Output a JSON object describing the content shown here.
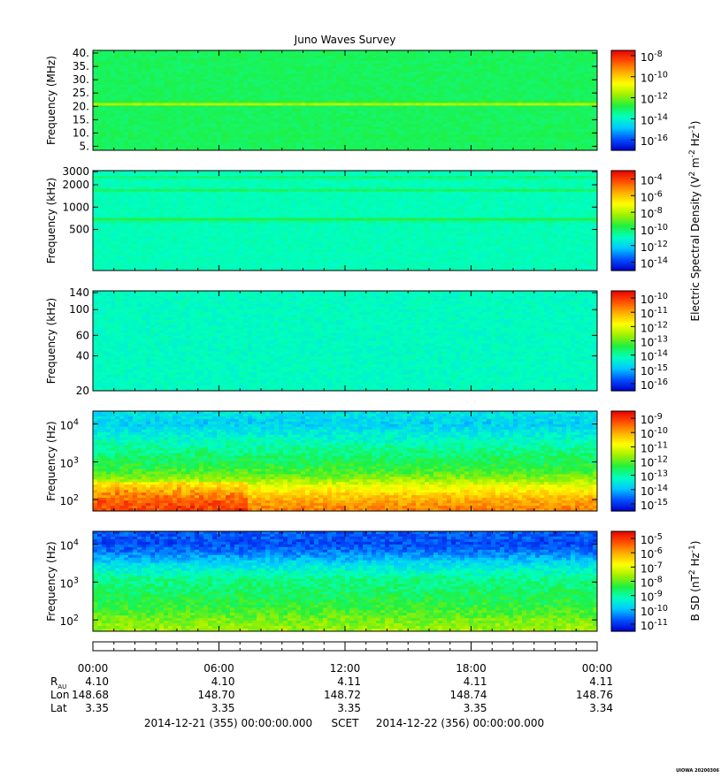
{
  "title": "Juno Waves Survey",
  "colors": {
    "colormap": [
      "#0000c8",
      "#0050ff",
      "#00c8ff",
      "#00ffc0",
      "#20f040",
      "#a0f000",
      "#ffff00",
      "#ffb000",
      "#ff5000",
      "#e80000"
    ]
  },
  "panels": [
    {
      "ylabel": "Frequency (MHz)",
      "yticks": [
        "5.",
        "10.",
        "15.",
        "20.",
        "25.",
        "30.",
        "35.",
        "40."
      ],
      "ytick_values": [
        5,
        10,
        15,
        20,
        25,
        30,
        35,
        40
      ],
      "yrange": [
        3.5,
        41
      ],
      "yscale": "linear",
      "colorbar_labels": [
        "10-16",
        "10-14",
        "10-12",
        "10-10",
        "10-8"
      ],
      "colorbar_ticks": [
        {
          "b": "10",
          "e": "-16"
        },
        {
          "b": "10",
          "e": "-14"
        },
        {
          "b": "10",
          "e": "-12"
        },
        {
          "b": "10",
          "e": "-10"
        },
        {
          "b": "10",
          "e": "-8"
        }
      ],
      "colorbar_range": [
        -17,
        -7.5
      ],
      "base_level": 0.42,
      "noise": 0.02,
      "bands": [
        {
          "value": 21.0,
          "width": 0.9,
          "level": 0.62
        },
        {
          "value": 8.5,
          "width": 0.6,
          "level": 0.46
        }
      ]
    },
    {
      "ylabel": "Frequency (kHz)",
      "yticks": [
        "500",
        "1000",
        "2000",
        "3000"
      ],
      "ytick_values": [
        500,
        1000,
        2000,
        3000
      ],
      "yrange": [
        140,
        3100
      ],
      "yscale": "log",
      "colorbar_labels": [
        "10-14",
        "10-12",
        "10-10",
        "10-8",
        "10-6",
        "10-4"
      ],
      "colorbar_ticks": [
        {
          "b": "10",
          "e": "-14"
        },
        {
          "b": "10",
          "e": "-12"
        },
        {
          "b": "10",
          "e": "-10"
        },
        {
          "b": "10",
          "e": "-8"
        },
        {
          "b": "10",
          "e": "-6"
        },
        {
          "b": "10",
          "e": "-4"
        }
      ],
      "colorbar_range": [
        -15,
        -3
      ],
      "base_level": 0.34,
      "noise": 0.02,
      "bands": [
        {
          "value": 680,
          "width": 60,
          "level": 0.45
        },
        {
          "value": 1700,
          "width": 150,
          "level": 0.42
        },
        {
          "value": 2500,
          "width": 200,
          "level": 0.4
        }
      ]
    },
    {
      "ylabel": "Frequency (kHz)",
      "yticks": [
        "20",
        "40",
        "60",
        "100",
        "140"
      ],
      "ytick_values": [
        20,
        40,
        60,
        100,
        140
      ],
      "yrange": [
        20,
        145
      ],
      "yscale": "log",
      "colorbar_labels": [
        "10-16",
        "10-15",
        "10-14",
        "10-13",
        "10-12",
        "10-11",
        "10-10"
      ],
      "colorbar_ticks": [
        {
          "b": "10",
          "e": "-16"
        },
        {
          "b": "10",
          "e": "-15"
        },
        {
          "b": "10",
          "e": "-14"
        },
        {
          "b": "10",
          "e": "-13"
        },
        {
          "b": "10",
          "e": "-12"
        },
        {
          "b": "10",
          "e": "-11"
        },
        {
          "b": "10",
          "e": "-10"
        }
      ],
      "colorbar_range": [
        -16.5,
        -9.5
      ],
      "base_level": 0.33,
      "noise": 0.025,
      "bands": []
    },
    {
      "ylabel": "Frequency (Hz)",
      "yticks": [
        {
          "b": "10",
          "e": "2"
        },
        {
          "b": "10",
          "e": "3"
        },
        {
          "b": "10",
          "e": "4"
        }
      ],
      "ytick_values": [
        100,
        1000,
        10000
      ],
      "yrange": [
        50,
        22000
      ],
      "yscale": "log",
      "colorbar_labels": [
        "10-15",
        "10-14",
        "10-13",
        "10-12",
        "10-11",
        "10-10",
        "10-9"
      ],
      "colorbar_ticks": [
        {
          "b": "10",
          "e": "-15"
        },
        {
          "b": "10",
          "e": "-14"
        },
        {
          "b": "10",
          "e": "-13"
        },
        {
          "b": "10",
          "e": "-12"
        },
        {
          "b": "10",
          "e": "-11"
        },
        {
          "b": "10",
          "e": "-10"
        },
        {
          "b": "10",
          "e": "-9"
        }
      ],
      "colorbar_range": [
        -15.5,
        -8.5
      ],
      "profile": [
        [
          50,
          0.84
        ],
        [
          80,
          0.8
        ],
        [
          150,
          0.72
        ],
        [
          250,
          0.62
        ],
        [
          400,
          0.52
        ],
        [
          700,
          0.45
        ],
        [
          1500,
          0.4
        ],
        [
          4000,
          0.32
        ],
        [
          10000,
          0.24
        ],
        [
          22000,
          0.28
        ]
      ],
      "noise": 0.05,
      "enhancement": {
        "x_start": 0.0,
        "x_end": 0.31,
        "f_max": 300,
        "level": 0.1
      }
    },
    {
      "ylabel": "B SD (nT² Hz⁻¹)",
      "ylabel_left": "Frequency (Hz)",
      "yticks": [
        {
          "b": "10",
          "e": "2"
        },
        {
          "b": "10",
          "e": "3"
        },
        {
          "b": "10",
          "e": "4"
        }
      ],
      "ytick_values": [
        100,
        1000,
        10000
      ],
      "yrange": [
        50,
        22000
      ],
      "yscale": "log",
      "colorbar_labels": [
        "10-11",
        "10-10",
        "10-9",
        "10-8",
        "10-7",
        "10-6",
        "10-5"
      ],
      "colorbar_ticks": [
        {
          "b": "10",
          "e": "-11"
        },
        {
          "b": "10",
          "e": "-10"
        },
        {
          "b": "10",
          "e": "-9"
        },
        {
          "b": "10",
          "e": "-8"
        },
        {
          "b": "10",
          "e": "-7"
        },
        {
          "b": "10",
          "e": "-6"
        },
        {
          "b": "10",
          "e": "-5"
        }
      ],
      "colorbar_range": [
        -11.5,
        -4.5
      ],
      "profile": [
        [
          50,
          0.56
        ],
        [
          100,
          0.52
        ],
        [
          200,
          0.46
        ],
        [
          500,
          0.42
        ],
        [
          1200,
          0.38
        ],
        [
          3000,
          0.26
        ],
        [
          6000,
          0.15
        ],
        [
          10000,
          0.1
        ],
        [
          22000,
          0.12
        ]
      ],
      "noise": 0.05
    }
  ],
  "right_labels": {
    "electric": "Electric Spectral Density (V² m⁻² Hz⁻¹)",
    "electric_parts": [
      "Electric Spectral Density (V",
      "2",
      " m",
      "-2",
      " Hz",
      "-1",
      ")"
    ],
    "magnetic_parts": [
      "B SD (nT",
      "2",
      " Hz",
      "-1",
      ")"
    ]
  },
  "time_axis": {
    "ticks": [
      "00:00",
      "06:00",
      "12:00",
      "18:00",
      "00:00"
    ],
    "tick_hours": [
      0,
      6,
      12,
      18,
      24
    ],
    "range_hours": [
      0,
      24
    ]
  },
  "ephemeris": {
    "rows": [
      {
        "label": "R",
        "sub": "AU",
        "values": [
          "4.10",
          "4.10",
          "4.11",
          "4.11",
          "4.11"
        ]
      },
      {
        "label": "Lon",
        "values": [
          "148.68",
          "148.70",
          "148.72",
          "148.74",
          "148.76"
        ]
      },
      {
        "label": "Lat",
        "values": [
          "3.35",
          "3.35",
          "3.35",
          "3.35",
          "3.34"
        ]
      }
    ]
  },
  "footer": {
    "start": "2014-12-21 (355) 00:00:00.000",
    "scet": "SCET",
    "end": "2014-12-22 (356) 00:00:00.000",
    "stamp": "UIOWA 20200306"
  },
  "chart_data": {
    "type": "heatmap",
    "title": "Juno Waves Survey",
    "x": {
      "label": "",
      "ticks": [
        "00:00",
        "06:00",
        "12:00",
        "18:00",
        "00:00"
      ],
      "range_hours": [
        0,
        24
      ]
    },
    "panels": [
      {
        "ylabel": "Frequency (MHz)",
        "yrange": [
          3.5,
          41
        ],
        "colorbar": [
          "10-16",
          "10-14",
          "10-12",
          "10-10",
          "10-8"
        ],
        "features": [
          {
            "type": "band",
            "frequency_MHz": 21
          }
        ]
      },
      {
        "ylabel": "Frequency (kHz)",
        "yrange": [
          140,
          3100
        ],
        "colorbar": [
          "10-14",
          "10-12",
          "10-10",
          "10-8",
          "10-6",
          "10-4"
        ],
        "features": [
          {
            "type": "band",
            "frequency_kHz": 680
          }
        ]
      },
      {
        "ylabel": "Frequency (kHz)",
        "yrange": [
          20,
          145
        ],
        "colorbar": [
          "10-16",
          "10-15",
          "10-14",
          "10-13",
          "10-12",
          "10-11",
          "10-10"
        ]
      },
      {
        "ylabel": "Frequency (Hz)",
        "yrange": [
          50,
          22000
        ],
        "yscale": "log",
        "colorbar": [
          "10-15",
          "10-14",
          "10-13",
          "10-12",
          "10-11",
          "10-10",
          "10-9"
        ],
        "features": [
          {
            "type": "enhancement",
            "time_hours": [
              0,
              7.5
            ],
            "frequency_Hz": [
              50,
              300
            ]
          }
        ]
      },
      {
        "ylabel": "Frequency (Hz)",
        "yrange": [
          50,
          22000
        ],
        "yscale": "log",
        "colorbar": [
          "10-11",
          "10-10",
          "10-9",
          "10-8",
          "10-7",
          "10-6",
          "10-5"
        ]
      }
    ]
  }
}
